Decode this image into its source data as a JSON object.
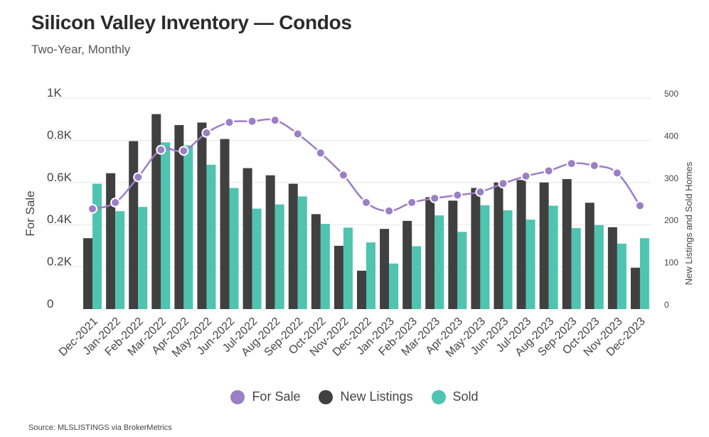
{
  "title": "Silicon Valley Inventory — Condos",
  "subtitle": "Two-Year, Monthly",
  "source": "Source:  MLSLISTINGS via BrokerMetrics",
  "colors": {
    "for_sale": "#9b7fc6",
    "new_listings": "#404040",
    "sold": "#4fc4b0",
    "grid": "#e6e6e6"
  },
  "legend": [
    {
      "label": "For Sale",
      "color": "#9b7fc6"
    },
    {
      "label": "New Listings",
      "color": "#404040"
    },
    {
      "label": "Sold",
      "color": "#4fc4b0"
    }
  ],
  "chart_data": {
    "type": "bar",
    "title": "Silicon Valley Inventory — Condos",
    "subtitle": "Two-Year, Monthly",
    "categories": [
      "Dec-2021",
      "Jan-2022",
      "Feb-2022",
      "Mar-2022",
      "Apr-2022",
      "May-2022",
      "Jun-2022",
      "Jul-2022",
      "Aug-2022",
      "Sep-2022",
      "Oct-2022",
      "Nov-2022",
      "Dec-2022",
      "Jan-2023",
      "Feb-2023",
      "Mar-2023",
      "Apr-2023",
      "May-2023",
      "Jun-2023",
      "Jul-2023",
      "Aug-2023",
      "Sep-2023",
      "Oct-2023",
      "Nov-2023",
      "Dec-2023"
    ],
    "ylabel_left": "For Sale",
    "ylabel_right": "New Listings and Sold Homes",
    "ylim_left": [
      0,
      1000
    ],
    "ylim_right": [
      0,
      500
    ],
    "yticks_left": [
      "0",
      "0.2K",
      "0.4K",
      "0.6K",
      "0.8K",
      "1K"
    ],
    "yticks_right": [
      "0",
      "100",
      "200",
      "300",
      "400",
      "500"
    ],
    "grid": true,
    "legend_position": "bottom",
    "series": [
      {
        "name": "For Sale",
        "kind": "line",
        "axis": "left",
        "values": [
          475,
          505,
          625,
          755,
          750,
          835,
          885,
          890,
          895,
          830,
          740,
          635,
          505,
          465,
          505,
          525,
          540,
          555,
          595,
          630,
          655,
          690,
          680,
          645,
          490
        ]
      },
      {
        "name": "New Listings",
        "kind": "bar",
        "axis": "right",
        "values": [
          168,
          322,
          398,
          462,
          436,
          442,
          403,
          334,
          317,
          297,
          225,
          150,
          91,
          190,
          209,
          265,
          257,
          287,
          300,
          306,
          300,
          308,
          252,
          194,
          98
        ]
      },
      {
        "name": "Sold",
        "kind": "bar",
        "axis": "right",
        "values": [
          297,
          232,
          242,
          395,
          388,
          342,
          287,
          238,
          248,
          267,
          202,
          193,
          158,
          108,
          149,
          222,
          183,
          246,
          234,
          212,
          245,
          192,
          199,
          155,
          168
        ]
      }
    ]
  }
}
